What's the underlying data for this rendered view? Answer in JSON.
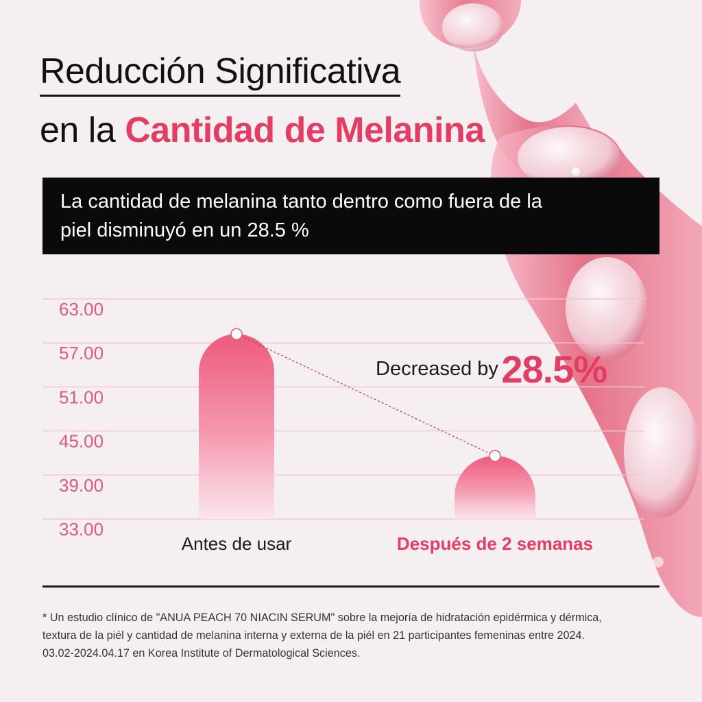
{
  "title": {
    "line1": "Reducción Significativa",
    "line2_prefix": "en la ",
    "line2_accent": "Cantidad de Melanina"
  },
  "banner": {
    "line1": "La cantidad de melanina tanto dentro como fuera de la",
    "line2": "piel disminuyó en un 28.5 %"
  },
  "annotation": {
    "label": "Decreased by",
    "value": "28.5%"
  },
  "footnote": {
    "line1": "* Un estudio clínico de \"ANUA PEACH 70 NIACIN SERUM\" sobre la mejoría de hidratación epidérmica y dérmica,",
    "line2": "textura de la piél y cantidad de melanina interna y externa de la piél en 21 participantes femeninas entre 2024.",
    "line3": "03.02-2024.04.17 en Korea Institute of Dermatological Sciences."
  },
  "colors": {
    "accent": "#e33d63",
    "bar_top": "#ee5a7c",
    "gridline": "#f3c6d2",
    "background": "#f6eff2"
  },
  "chart_data": {
    "type": "bar",
    "categories": [
      "Antes de usar",
      "Después de 2 semanas"
    ],
    "values": [
      58.2,
      41.6
    ],
    "yticks": [
      "63.00",
      "57.00",
      "51.00",
      "45.00",
      "39.00",
      "33.00"
    ],
    "ylim": [
      33,
      63
    ],
    "grid": true,
    "annotation": "Decreased by 28.5%"
  }
}
